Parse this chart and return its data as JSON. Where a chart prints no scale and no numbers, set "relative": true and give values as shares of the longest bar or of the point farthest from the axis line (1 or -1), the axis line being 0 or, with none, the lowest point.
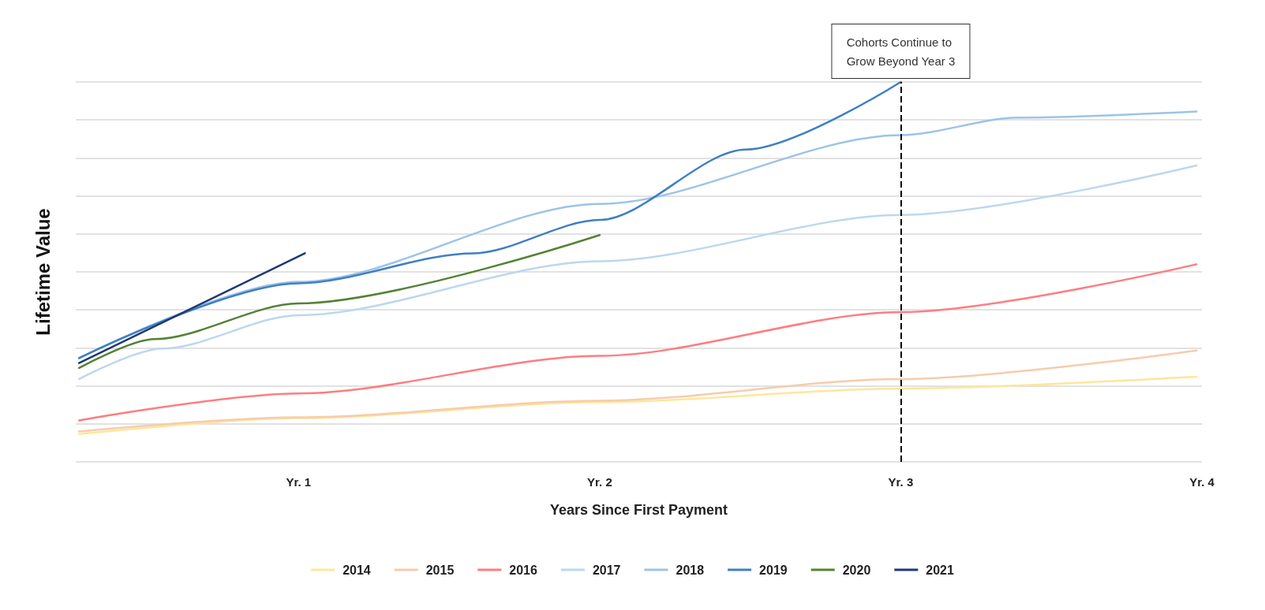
{
  "chart_data": {
    "type": "line",
    "xlabel": "Years Since First Payment",
    "ylabel": "Lifetime Value",
    "relative": true,
    "grid": "y",
    "legend": "bottom",
    "marker": "none",
    "line_style": "solid",
    "xlim": [
      0.26,
      4
    ],
    "xticks": [
      {
        "value": 1,
        "label": "Yr. 1"
      },
      {
        "value": 2,
        "label": "Yr. 2"
      },
      {
        "value": 3,
        "label": "Yr. 3"
      },
      {
        "value": 4,
        "label": "Yr. 4"
      }
    ],
    "ref_lines": [
      {
        "axis": "x",
        "value": 3,
        "label": "Cohorts Continue to Grow Beyond Year 3",
        "color": "#000000",
        "line_style": "dashed"
      }
    ],
    "series": [
      {
        "name": "2014",
        "color": "#ffe699",
        "x": [
          0.271,
          1,
          2,
          3,
          3.982
        ],
        "values": [
          0.073,
          0.115,
          0.157,
          0.193,
          0.224
        ]
      },
      {
        "name": "2015",
        "color": "#f8cbad",
        "x": [
          0.271,
          1,
          2,
          3,
          3.982
        ],
        "values": [
          0.08,
          0.117,
          0.161,
          0.218,
          0.293
        ]
      },
      {
        "name": "2016",
        "color": "#ff7c80",
        "x": [
          0.271,
          1,
          2,
          3,
          3.982
        ],
        "values": [
          0.109,
          0.18,
          0.279,
          0.394,
          0.52
        ]
      },
      {
        "name": "2017",
        "color": "#bdd7ee",
        "x": [
          0.271,
          0.548,
          1,
          2,
          3,
          3.982
        ],
        "values": [
          0.218,
          0.298,
          0.386,
          0.528,
          0.65,
          0.78
        ]
      },
      {
        "name": "2018",
        "color": "#9dc3e6",
        "x": [
          0.271,
          1,
          2,
          3,
          3.39,
          3.982
        ],
        "values": [
          0.273,
          0.474,
          0.679,
          0.86,
          0.906,
          0.922
        ]
      },
      {
        "name": "2019",
        "color": "#3f7fc4",
        "x": [
          0.271,
          1,
          1.581,
          2,
          2.486,
          3
        ],
        "values": [
          0.273,
          0.47,
          0.549,
          0.637,
          0.822,
          1
        ]
      },
      {
        "name": "2020",
        "color": "#548235",
        "x": [
          0.271,
          0.522,
          1,
          2
        ],
        "values": [
          0.247,
          0.323,
          0.417,
          0.597
        ]
      },
      {
        "name": "2021",
        "color": "#1f3872",
        "x": [
          0.271,
          1.021
        ],
        "values": [
          0.26,
          0.549
        ]
      }
    ]
  }
}
